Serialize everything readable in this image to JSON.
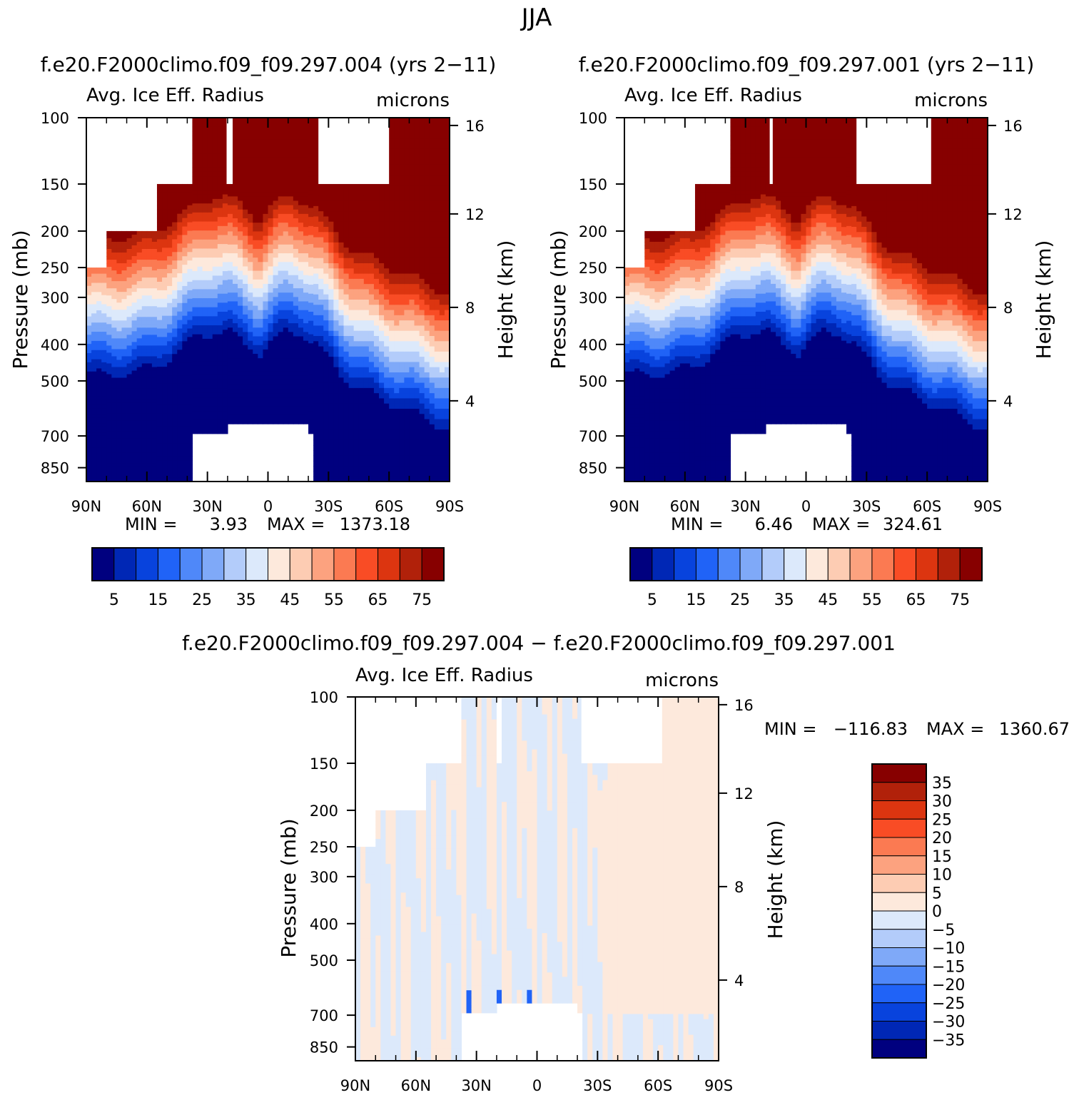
{
  "page_title": "JJA",
  "colors": {
    "abs_levels": [
      "#00007f",
      "#0027b5",
      "#0843dd",
      "#2063f7",
      "#4f88f9",
      "#7fa9f8",
      "#b3ccfa",
      "#dce9fb",
      "#fde9dc",
      "#fdccb3",
      "#fca27f",
      "#fb7a52",
      "#f94c25",
      "#dc3510",
      "#b1210a",
      "#870000"
    ],
    "diff_levels": [
      "#00007f",
      "#0027b5",
      "#0843dd",
      "#2063f7",
      "#4f88f9",
      "#7fa9f8",
      "#b3ccfa",
      "#dce9fb",
      "#fde9dc",
      "#fdccb3",
      "#fca27f",
      "#fb7a52",
      "#f94c25",
      "#dc3510",
      "#b1210a",
      "#870000"
    ],
    "missing": "#ffffff"
  },
  "chart_data": [
    {
      "id": "panel-004",
      "type": "heatmap",
      "title": "f.e20.F2000climo.f09_f09.297.004 (yrs 2−11)",
      "field_label": "Avg. Ice Eff. Radius",
      "units": "microns",
      "ylabel": "Pressure (mb)",
      "ylabel_right": "Height (km)",
      "x_ticks": [
        "90N",
        "60N",
        "30N",
        "0",
        "30S",
        "60S",
        "90S"
      ],
      "x_range": [
        90,
        -90
      ],
      "y_ticks": [
        100,
        150,
        200,
        250,
        300,
        400,
        500,
        700,
        850
      ],
      "y_range": [
        100,
        925
      ],
      "height_ticks": [
        16,
        12,
        8,
        4
      ],
      "min_label": "MIN =",
      "min_value": "3.93",
      "max_label": "MAX =",
      "max_value": "1373.18",
      "colorbar_labels": [
        "5",
        "15",
        "25",
        "35",
        "45",
        "55",
        "65",
        "75"
      ],
      "colorbar_levels": [
        5,
        10,
        15,
        20,
        25,
        30,
        35,
        40,
        45,
        50,
        55,
        60,
        65,
        70,
        75
      ]
    },
    {
      "id": "panel-001",
      "type": "heatmap",
      "title": "f.e20.F2000climo.f09_f09.297.001 (yrs 2−11)",
      "field_label": "Avg. Ice Eff. Radius",
      "units": "microns",
      "ylabel": "Pressure (mb)",
      "ylabel_right": "Height (km)",
      "x_ticks": [
        "90N",
        "60N",
        "30N",
        "0",
        "30S",
        "60S",
        "90S"
      ],
      "x_range": [
        90,
        -90
      ],
      "y_ticks": [
        100,
        150,
        200,
        250,
        300,
        400,
        500,
        700,
        850
      ],
      "y_range": [
        100,
        925
      ],
      "height_ticks": [
        16,
        12,
        8,
        4
      ],
      "min_label": "MIN =",
      "min_value": "6.46",
      "max_label": "MAX =",
      "max_value": "324.61",
      "colorbar_labels": [
        "5",
        "15",
        "25",
        "35",
        "45",
        "55",
        "65",
        "75"
      ],
      "colorbar_levels": [
        5,
        10,
        15,
        20,
        25,
        30,
        35,
        40,
        45,
        50,
        55,
        60,
        65,
        70,
        75
      ]
    },
    {
      "id": "panel-diff",
      "type": "heatmap",
      "title": "f.e20.F2000climo.f09_f09.297.004 − f.e20.F2000climo.f09_f09.297.001",
      "field_label": "Avg. Ice Eff. Radius",
      "units": "microns",
      "ylabel": "Pressure (mb)",
      "ylabel_right": "Height (km)",
      "x_ticks": [
        "90N",
        "60N",
        "30N",
        "0",
        "30S",
        "60S",
        "90S"
      ],
      "x_range": [
        90,
        -90
      ],
      "y_ticks": [
        100,
        150,
        200,
        250,
        300,
        400,
        500,
        700,
        850
      ],
      "y_range": [
        100,
        925
      ],
      "height_ticks": [
        16,
        12,
        8,
        4
      ],
      "min_label": "MIN =",
      "min_value": "−116.83",
      "max_label": "MAX =",
      "max_value": "1360.67",
      "colorbar_labels": [
        "35",
        "30",
        "25",
        "20",
        "15",
        "10",
        "5",
        "0",
        "−5",
        "−10",
        "−15",
        "−20",
        "−25",
        "−30",
        "−35"
      ],
      "colorbar_levels": [
        35,
        30,
        25,
        20,
        15,
        10,
        5,
        0,
        -5,
        -10,
        -15,
        -20,
        -25,
        -30,
        -35
      ]
    }
  ]
}
